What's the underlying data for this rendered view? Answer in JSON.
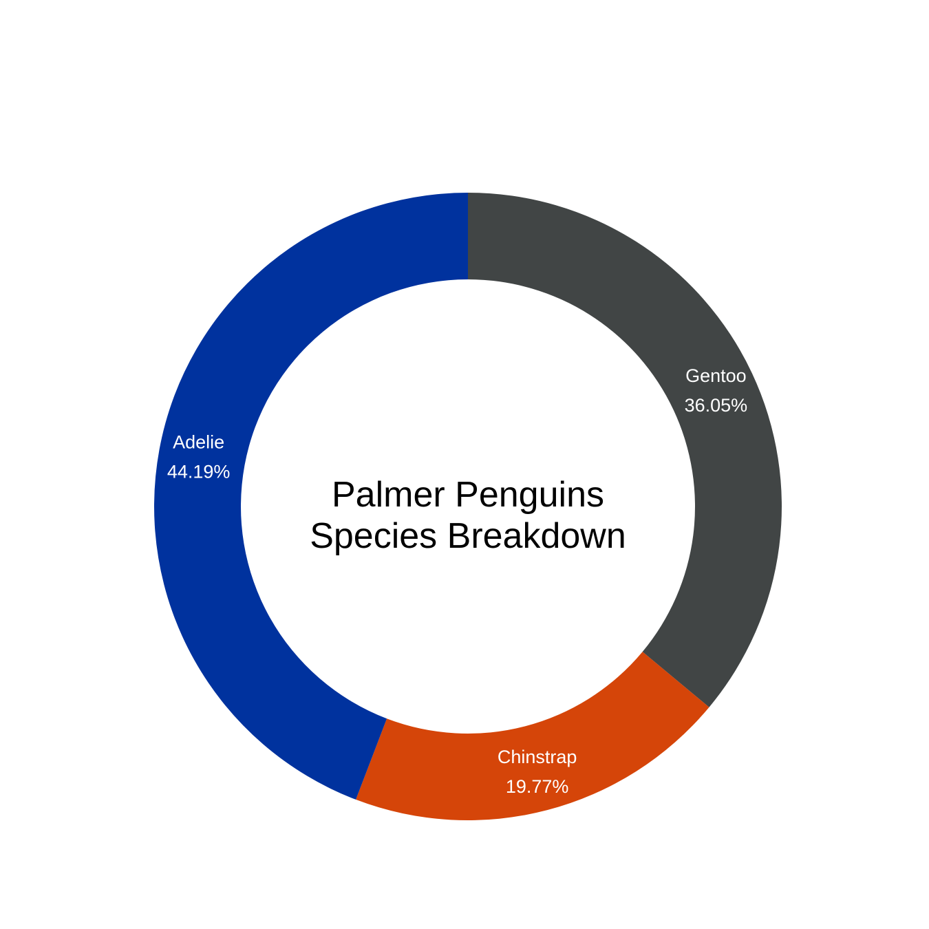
{
  "chart_data": {
    "type": "pie",
    "variant": "donut",
    "title_lines": [
      "Palmer Penguins",
      "Species Breakdown"
    ],
    "start_angle_deg": 0,
    "direction": "clockwise",
    "slices": [
      {
        "label": "Gentoo",
        "value": 36.05,
        "value_text": "36.05%",
        "color": "#414545"
      },
      {
        "label": "Chinstrap",
        "value": 19.77,
        "value_text": "19.77%",
        "color": "#D54509"
      },
      {
        "label": "Adelie",
        "value": 44.19,
        "value_text": "44.19%",
        "color": "#00329E"
      }
    ],
    "label_color": "#FFFFFF",
    "title_color": "#000000",
    "legend": "none",
    "grid": false
  }
}
